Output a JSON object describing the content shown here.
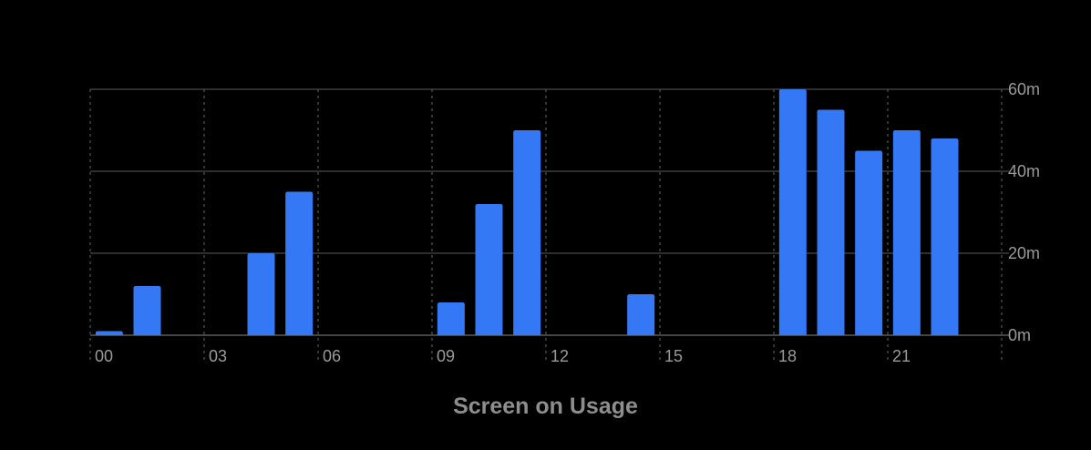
{
  "chart_data": {
    "type": "bar",
    "title": "Screen on Usage",
    "x_unit": "hour",
    "categories": [
      "00",
      "01",
      "02",
      "03",
      "04",
      "05",
      "06",
      "07",
      "08",
      "09",
      "10",
      "11",
      "12",
      "13",
      "14",
      "15",
      "16",
      "17",
      "18",
      "19",
      "20",
      "21",
      "22",
      "23"
    ],
    "x_tick_labels": [
      "00",
      "03",
      "06",
      "09",
      "12",
      "15",
      "18",
      "21"
    ],
    "y_tick_labels": [
      "0m",
      "20m",
      "40m",
      "60m"
    ],
    "y_unit": "minutes",
    "ylim": [
      0,
      60
    ],
    "values": [
      1,
      12,
      0,
      0,
      20,
      35,
      0,
      0,
      0,
      8,
      32,
      50,
      0,
      0,
      10,
      0,
      0,
      0,
      60,
      55,
      45,
      50,
      48,
      0
    ],
    "bar_color": "#3478f6",
    "grid": true,
    "y_axis_position": "right"
  }
}
